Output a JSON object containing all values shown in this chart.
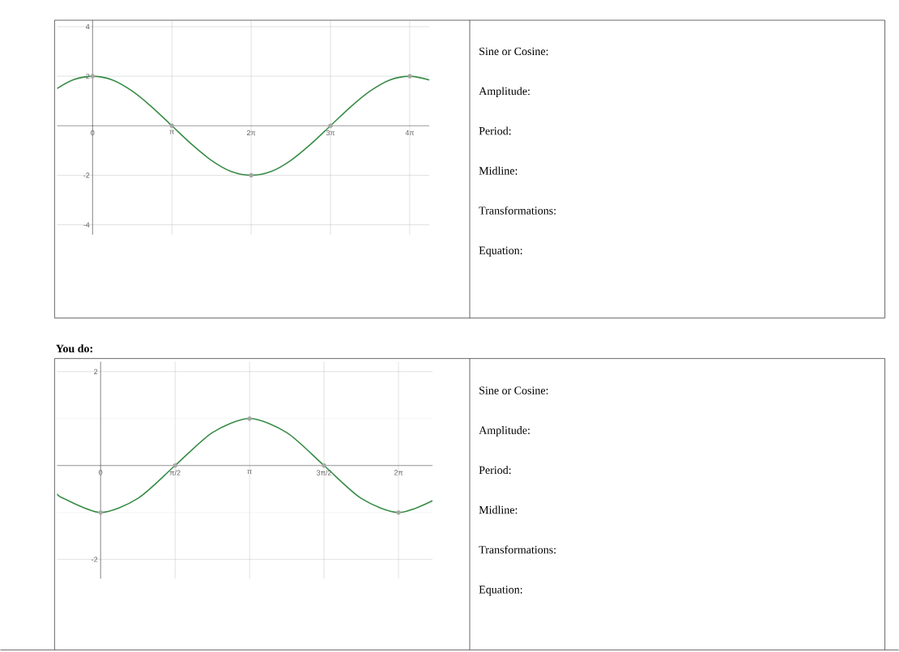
{
  "chart_data": [
    {
      "type": "line",
      "xlim": [
        -1.41,
        13.34
      ],
      "ylim": [
        -4.4,
        4.26
      ],
      "grid": true,
      "xticks": [
        {
          "value": 0,
          "label": "0"
        },
        {
          "value": 3.142,
          "label": "π"
        },
        {
          "value": 6.283,
          "label": "2π"
        },
        {
          "value": 9.425,
          "label": "3π"
        },
        {
          "value": 12.566,
          "label": "4π"
        }
      ],
      "yticks": [
        -4,
        -2,
        2,
        4
      ],
      "series": [
        {
          "type": "line",
          "color": "#388c46",
          "marker": "none",
          "x": [
            -1.41,
            -0.785,
            0,
            0.785,
            1.571,
            2.356,
            3.142,
            3.927,
            4.712,
            5.498,
            6.283,
            7.069,
            7.854,
            8.639,
            9.425,
            10.21,
            10.996,
            11.781,
            12.566,
            13.34
          ],
          "values": [
            1.5,
            1.85,
            2,
            1.85,
            1.4,
            0.75,
            0,
            -0.75,
            -1.4,
            -1.85,
            -2,
            -1.85,
            -1.4,
            -0.75,
            0,
            0.75,
            1.4,
            1.85,
            2,
            1.85
          ]
        },
        {
          "type": "scatter",
          "color": "#a6a6a6",
          "marker": "circle",
          "x": [
            0,
            3.142,
            6.283,
            9.425,
            12.566
          ],
          "values": [
            2,
            0,
            -2,
            0,
            2
          ]
        }
      ]
    },
    {
      "type": "other",
      "annotations": [
        "Sine or Cosine:",
        "Amplitude:",
        "Period:",
        "Midline:",
        "Transformations:",
        "Equation:"
      ]
    },
    {
      "type": "line",
      "title": "You do:",
      "xlim": [
        -0.92,
        7.0
      ],
      "ylim": [
        -2.41,
        2.21
      ],
      "grid": true,
      "xticks": [
        {
          "value": 0,
          "label": "0"
        },
        {
          "value": 1.571,
          "label": "π/2"
        },
        {
          "value": 3.142,
          "label": "π"
        },
        {
          "value": 4.712,
          "label": "3π/2"
        },
        {
          "value": 6.283,
          "label": "2π"
        }
      ],
      "yticks": [
        -2,
        2
      ],
      "series": [
        {
          "type": "line",
          "color": "#388c46",
          "marker": "none",
          "x": [
            -0.92,
            -0.785,
            0,
            0.785,
            1.571,
            2.356,
            3.142,
            3.927,
            4.712,
            5.498,
            6.283,
            7.0
          ],
          "values": [
            -0.6,
            -0.7,
            -1,
            -0.7,
            0,
            0.7,
            1,
            0.7,
            0,
            -0.7,
            -1,
            -0.75
          ]
        },
        {
          "type": "scatter",
          "color": "#a6a6a6",
          "marker": "circle",
          "x": [
            0,
            1.571,
            3.142,
            4.712,
            6.283
          ],
          "values": [
            -1,
            0,
            1,
            0,
            -1
          ]
        }
      ]
    },
    {
      "type": "other",
      "annotations": [
        "Sine or Cosine:",
        "Amplitude:",
        "Period:",
        "Midline:",
        "Transformations:",
        "Equation:"
      ]
    }
  ]
}
